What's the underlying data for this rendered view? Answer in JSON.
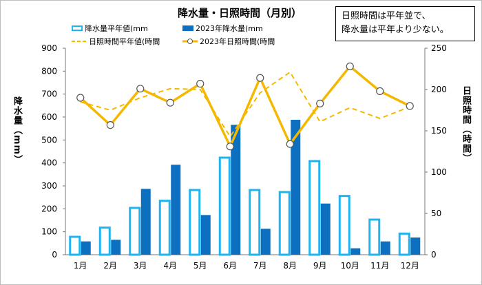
{
  "chart_data": {
    "type": "bar",
    "title": "降水量・日照時間（月別）",
    "categories": [
      "1月",
      "2月",
      "3月",
      "4月",
      "5月",
      "6月",
      "7月",
      "8月",
      "9月",
      "10月",
      "11月",
      "12月"
    ],
    "series": [
      {
        "name": "降水量平年値mm",
        "kind": "bar",
        "axis": "left",
        "style": "hollow",
        "color": "#1eb4f0",
        "values": [
          78,
          118,
          204,
          235,
          282,
          423,
          282,
          273,
          408,
          256,
          153,
          92
        ]
      },
      {
        "name": "2023年降水量mm",
        "kind": "bar",
        "axis": "left",
        "style": "solid",
        "color": "#0d6fbf",
        "values": [
          58,
          65,
          287,
          392,
          173,
          566,
          113,
          588,
          223,
          28,
          58,
          75
        ]
      },
      {
        "name": "日照時間平年値時間",
        "kind": "line",
        "axis": "right",
        "style": "dashed",
        "color": "#f5b800",
        "values": [
          185,
          175,
          190,
          201,
          200,
          143,
          196,
          221,
          161,
          178,
          165,
          179
        ]
      },
      {
        "name": "2023年日照時間時間",
        "kind": "line",
        "axis": "right",
        "style": "solid-marker",
        "color": "#f5b800",
        "values": [
          190,
          157,
          201,
          184,
          207,
          131,
          214,
          134,
          183,
          228,
          198,
          180
        ]
      }
    ],
    "ylabel_left": "降水量（mm）",
    "ylabel_right": "日照時間（時間）",
    "ylim_left": [
      0,
      900
    ],
    "ylim_right": [
      0,
      250
    ],
    "yticks_left": [
      "0",
      "100",
      "200",
      "300",
      "400",
      "500",
      "600",
      "700",
      "800",
      "900"
    ],
    "yticks_right": [
      "0",
      "50",
      "100",
      "150",
      "200",
      "250"
    ],
    "grid": false,
    "legend_position": "top-left"
  },
  "note": {
    "line1": "日照時間は平年並で、",
    "line2": "降水量は平年より少ない。"
  },
  "legend": {
    "item1": "降水量平年値(mm",
    "item2": "2023年降水量(mm",
    "item3": "日照時間平年値(時間",
    "item4": "2023年日照時間(時間"
  }
}
